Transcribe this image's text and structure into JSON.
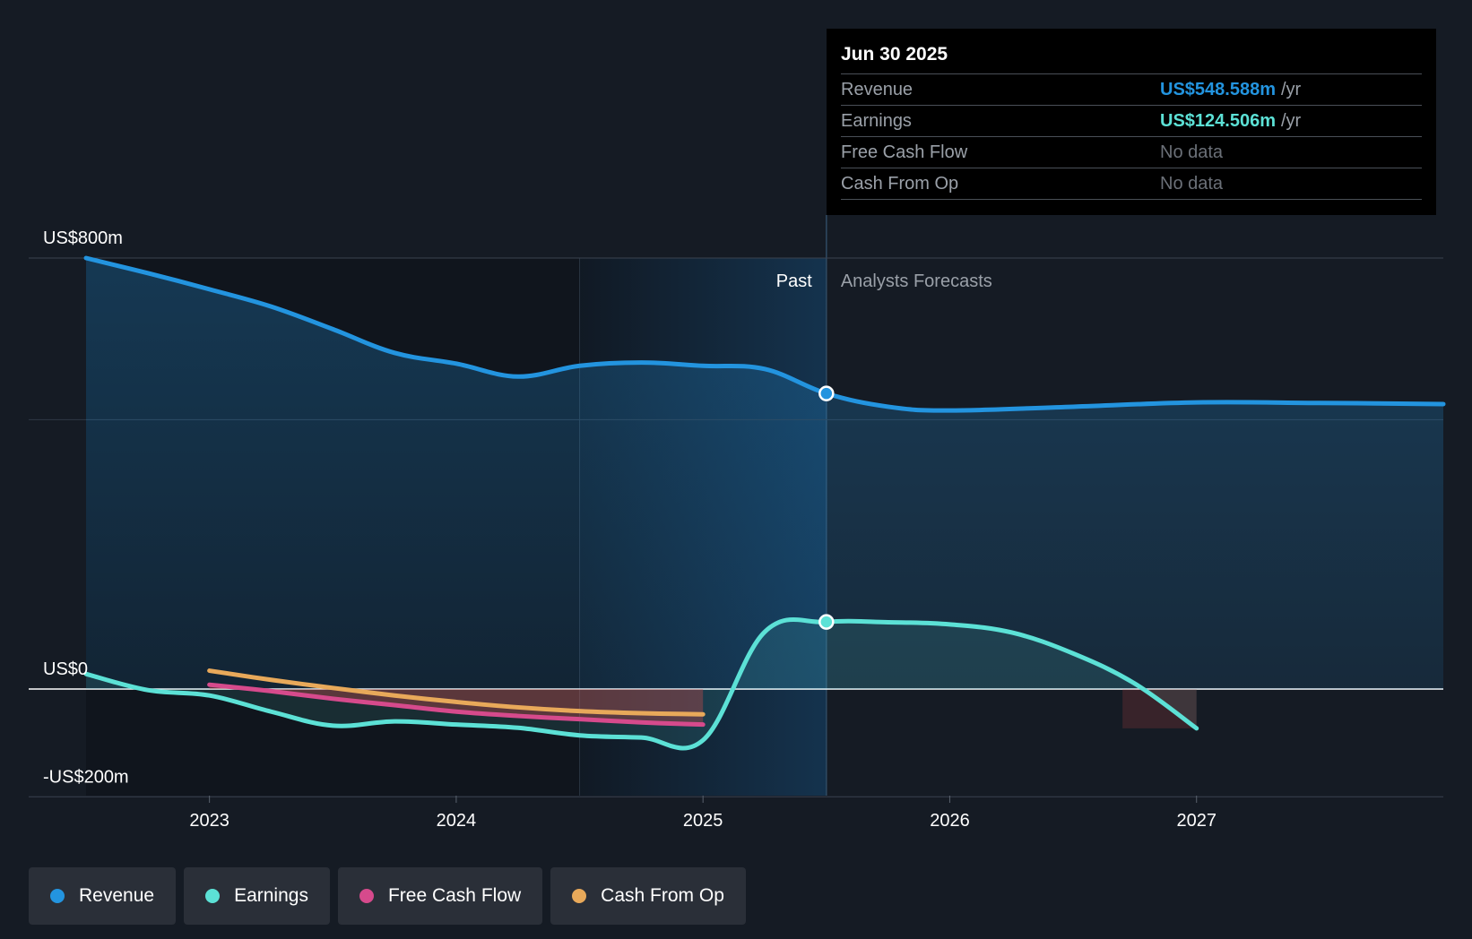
{
  "chart_data": {
    "type": "line",
    "title": "",
    "y_axis": {
      "labels": [
        "US$800m",
        "US$0",
        "-US$200m"
      ],
      "ylim": [
        -200,
        800
      ]
    },
    "x_axis": {
      "ticks": [
        "2023",
        "2024",
        "2025",
        "2026",
        "2027"
      ],
      "xlim": [
        2022.5,
        2028.0
      ]
    },
    "regions": {
      "past_label": "Past",
      "forecast_label": "Analysts Forecasts",
      "divider_x": 2025.5
    },
    "series": [
      {
        "name": "Revenue",
        "color": "#2394df",
        "points": [
          [
            2022.5,
            800
          ],
          [
            2022.75,
            772
          ],
          [
            2023.0,
            742
          ],
          [
            2023.25,
            710
          ],
          [
            2023.5,
            668
          ],
          [
            2023.75,
            624
          ],
          [
            2024.0,
            604
          ],
          [
            2024.25,
            580
          ],
          [
            2024.5,
            600
          ],
          [
            2024.75,
            606
          ],
          [
            2025.0,
            600
          ],
          [
            2025.25,
            594
          ],
          [
            2025.5,
            548.588
          ],
          [
            2025.75,
            524
          ],
          [
            2026.0,
            517
          ],
          [
            2026.5,
            524
          ],
          [
            2027.0,
            532
          ],
          [
            2027.5,
            531
          ],
          [
            2028.0,
            529
          ]
        ]
      },
      {
        "name": "Earnings",
        "color": "#5ce1d6",
        "points": [
          [
            2022.5,
            28
          ],
          [
            2022.75,
            -2
          ],
          [
            2023.0,
            -12
          ],
          [
            2023.25,
            -42
          ],
          [
            2023.5,
            -68
          ],
          [
            2023.75,
            -60
          ],
          [
            2024.0,
            -66
          ],
          [
            2024.25,
            -72
          ],
          [
            2024.5,
            -86
          ],
          [
            2024.75,
            -90
          ],
          [
            2025.0,
            -95
          ],
          [
            2025.25,
            106
          ],
          [
            2025.5,
            124.506
          ],
          [
            2025.75,
            124
          ],
          [
            2026.0,
            120
          ],
          [
            2026.25,
            105
          ],
          [
            2026.5,
            66
          ],
          [
            2026.75,
            10
          ],
          [
            2027.0,
            -73
          ]
        ]
      },
      {
        "name": "Free Cash Flow",
        "color": "#d64a8c",
        "points": [
          [
            2023.0,
            8
          ],
          [
            2023.25,
            -4
          ],
          [
            2023.5,
            -18
          ],
          [
            2023.75,
            -30
          ],
          [
            2024.0,
            -42
          ],
          [
            2024.25,
            -50
          ],
          [
            2024.5,
            -56
          ],
          [
            2024.75,
            -62
          ],
          [
            2025.0,
            -66
          ]
        ]
      },
      {
        "name": "Cash From Op",
        "color": "#e8a95a",
        "points": [
          [
            2023.0,
            34
          ],
          [
            2023.25,
            17
          ],
          [
            2023.5,
            2
          ],
          [
            2023.75,
            -12
          ],
          [
            2024.0,
            -24
          ],
          [
            2024.25,
            -34
          ],
          [
            2024.5,
            -41
          ],
          [
            2024.75,
            -45
          ],
          [
            2025.0,
            -47
          ]
        ]
      }
    ],
    "highlight_x": 2025.5
  },
  "tooltip": {
    "date": "Jun 30 2025",
    "rows": [
      {
        "label": "Revenue",
        "value": "US$548.588m",
        "unit": "/yr",
        "color": "#2394df"
      },
      {
        "label": "Earnings",
        "value": "US$124.506m",
        "unit": "/yr",
        "color": "#5ce1d6"
      },
      {
        "label": "Free Cash Flow",
        "value": "No data",
        "unit": "",
        "color": "#6b7078"
      },
      {
        "label": "Cash From Op",
        "value": "No data",
        "unit": "",
        "color": "#6b7078"
      }
    ]
  },
  "legend": [
    {
      "label": "Revenue",
      "color": "#2394df"
    },
    {
      "label": "Earnings",
      "color": "#5ce1d6"
    },
    {
      "label": "Free Cash Flow",
      "color": "#d64a8c"
    },
    {
      "label": "Cash From Op",
      "color": "#e8a95a"
    }
  ]
}
